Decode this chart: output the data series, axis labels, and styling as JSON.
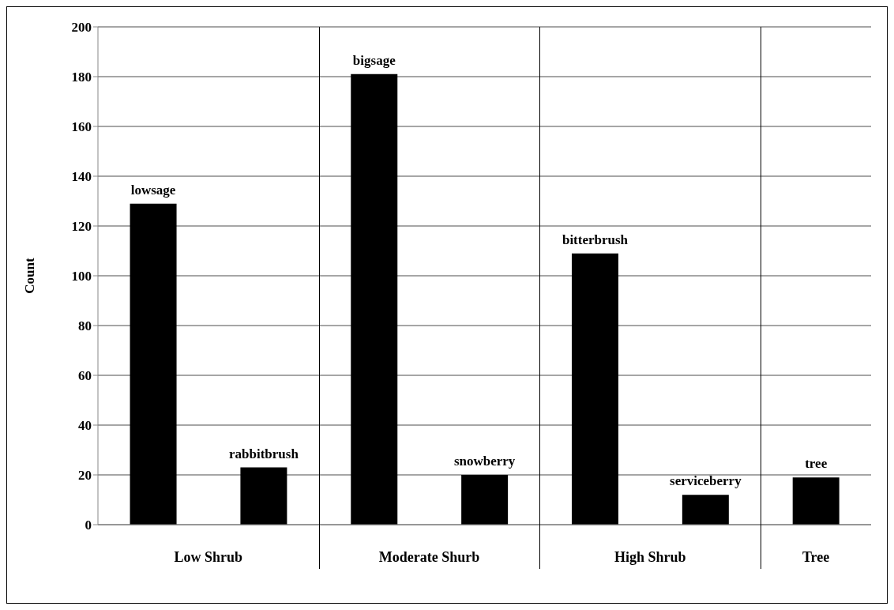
{
  "chart_data": {
    "type": "bar",
    "ylabel": "Count",
    "categories": [
      "lowsage",
      "rabbitbrush",
      "bigsage",
      "snowberry",
      "bitterbrush",
      "serviceberry",
      "tree"
    ],
    "values": [
      129,
      23,
      181,
      20,
      109,
      12,
      19
    ],
    "color": "#000000",
    "ylim": [
      0,
      200
    ],
    "yticks": [
      0,
      20,
      40,
      60,
      80,
      100,
      120,
      140,
      160,
      180,
      200
    ],
    "grid": "y",
    "legend": false,
    "annotations": [
      "Low Shrub",
      "Moderate Shurb",
      "High Shrub",
      "Tree"
    ]
  }
}
